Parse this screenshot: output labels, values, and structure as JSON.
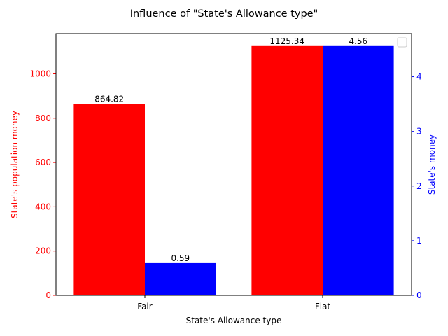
{
  "chart_data": {
    "type": "bar",
    "title": "Influence of \"State's Allowance type\"",
    "xlabel": "State's Allowance type",
    "categories": [
      "Fair",
      "Flat"
    ],
    "series": [
      {
        "name": "State's population money",
        "values": [
          864.82,
          1125.34
        ],
        "value_labels": [
          "864.82",
          "1125.34"
        ],
        "axis": "left",
        "color": "#ff0000"
      },
      {
        "name": "State's money",
        "values": [
          0.59,
          4.56
        ],
        "value_labels": [
          "0.59",
          "4.56"
        ],
        "axis": "right",
        "color": "#0000ff"
      }
    ],
    "y_left": {
      "label": "State's population money",
      "ylim": [
        0,
        1181.607
      ],
      "ticks": [
        0,
        200,
        400,
        600,
        800,
        1000
      ],
      "color": "#ff0000"
    },
    "y_right": {
      "label": "State's money",
      "ylim": [
        0,
        4.788
      ],
      "ticks": [
        0,
        1,
        2,
        3,
        4
      ],
      "color": "#0000ff"
    },
    "legend": {
      "placement": "top-right",
      "entries": []
    },
    "grid": false
  }
}
